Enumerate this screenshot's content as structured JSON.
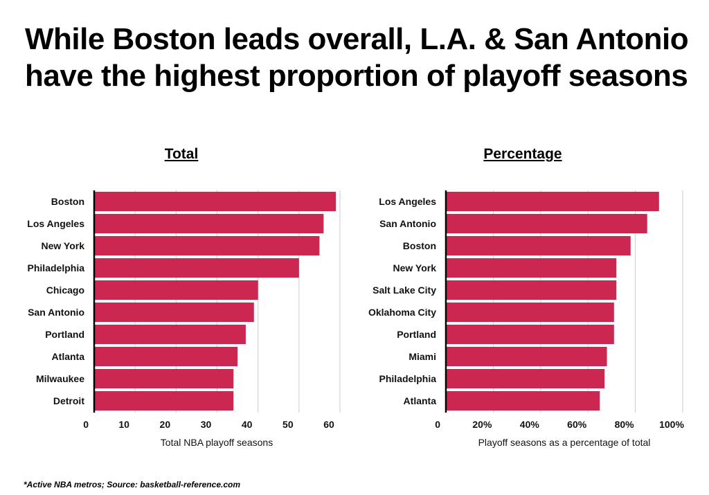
{
  "title_lines": [
    "While Boston leads overall, L.A. & San Antonio",
    "have the highest proportion of playoff seasons"
  ],
  "footnote": "*Active NBA metros; Source:  basketball-reference.com",
  "colors": {
    "bar": "#cc2751",
    "grid": "#cccccc",
    "axis": "#000000"
  },
  "chart_data": [
    {
      "type": "bar",
      "orientation": "horizontal",
      "title": "Total",
      "xlabel": "Total NBA playoff seasons",
      "categories": [
        "Boston",
        "Los Angeles",
        "New York",
        "Philadelphia",
        "Chicago",
        "San Antonio",
        "Portland",
        "Atlanta",
        "Milwaukee",
        "Detroit"
      ],
      "values": [
        59,
        56,
        55,
        50,
        40,
        39,
        37,
        35,
        34,
        34
      ],
      "xlim": [
        0,
        60
      ],
      "ticks": [
        0,
        10,
        20,
        30,
        40,
        50,
        60
      ],
      "tick_labels": [
        "0",
        "10",
        "20",
        "30",
        "40",
        "50",
        "60"
      ]
    },
    {
      "type": "bar",
      "orientation": "horizontal",
      "title": "Percentage",
      "xlabel": "Playoff seasons as a percentage of total",
      "categories": [
        "Los Angeles",
        "San Antonio",
        "Boston",
        "New York",
        "Salt Lake City",
        "Oklahoma City",
        "Portland",
        "Miami",
        "Philadelphia",
        "Atlanta"
      ],
      "values": [
        90,
        85,
        78,
        72,
        72,
        71,
        71,
        68,
        67,
        65
      ],
      "xlim": [
        0,
        100
      ],
      "ticks": [
        0,
        20,
        40,
        60,
        80,
        100
      ],
      "tick_labels": [
        "0",
        "20%",
        "40%",
        "60%",
        "80%",
        "100%"
      ]
    }
  ]
}
